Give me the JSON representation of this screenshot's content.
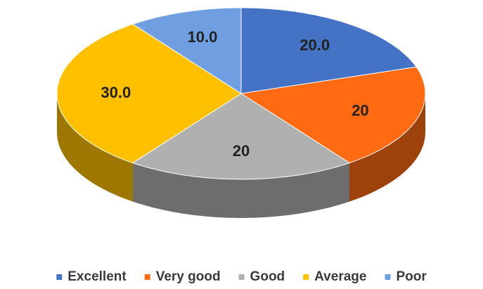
{
  "chart_data": {
    "type": "pie3d",
    "categories": [
      "Excellent",
      "Very good",
      "Good",
      "Average",
      "Poor"
    ],
    "values": [
      20,
      20,
      20,
      30,
      10
    ],
    "value_labels": [
      "20.0",
      "20",
      "20",
      "30.0",
      "10.0"
    ],
    "colors": [
      "#4472c4",
      "#ff6a13",
      "#b0b0b0",
      "#ffc000",
      "#6f9fe0"
    ],
    "legend": "bottom"
  }
}
